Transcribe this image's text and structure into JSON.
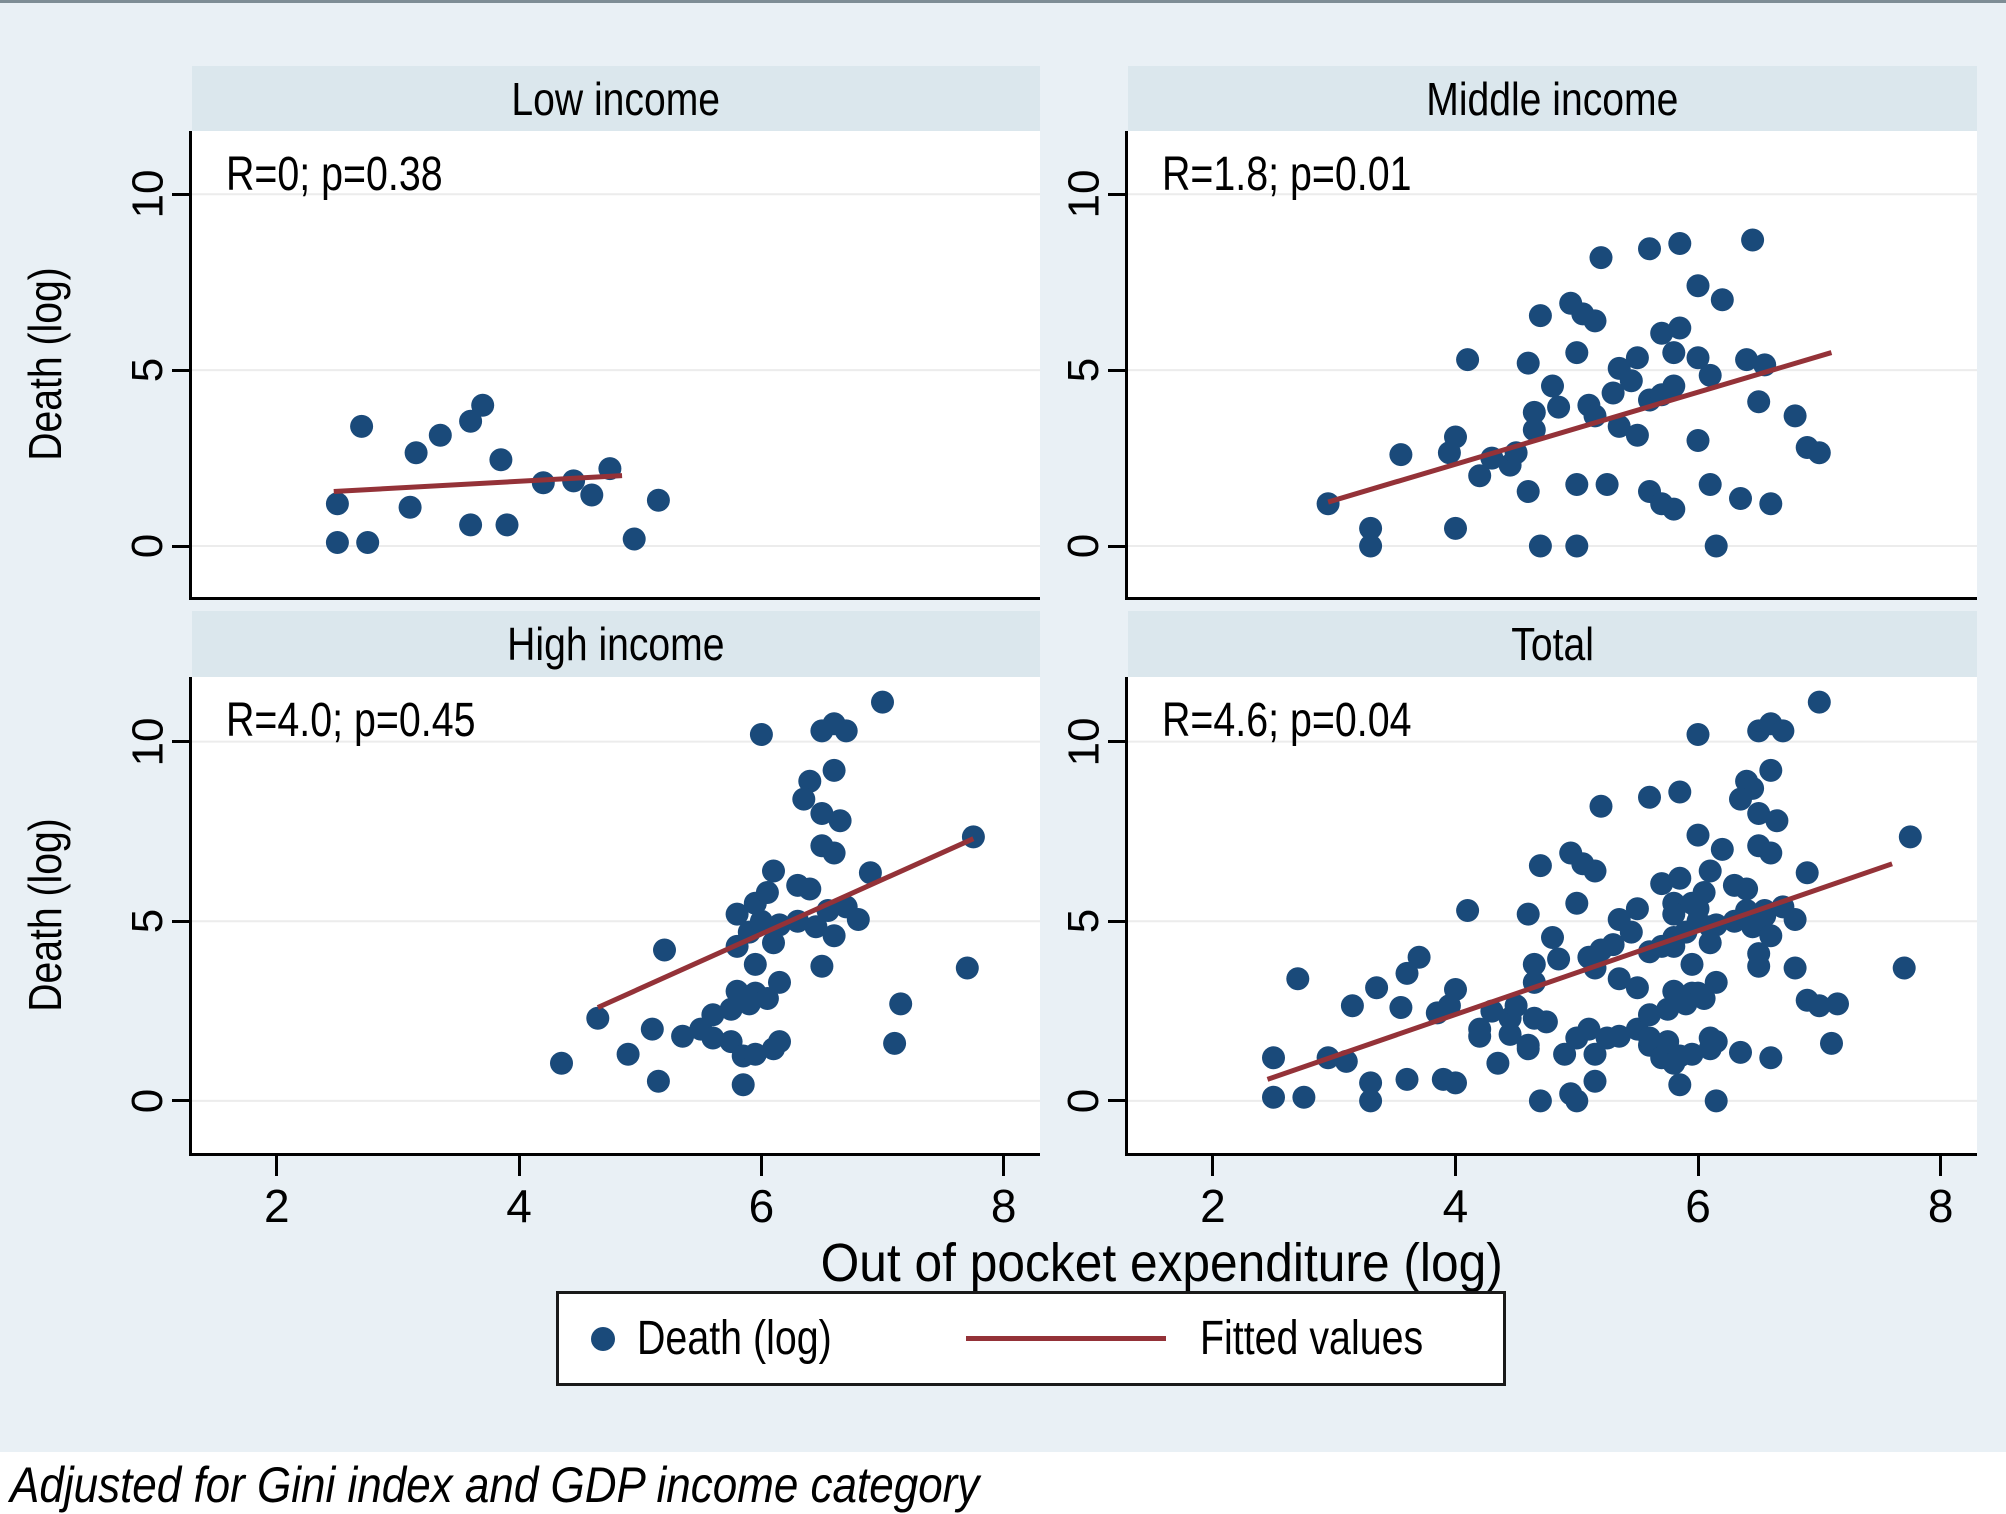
{
  "colors": {
    "point": "#1a4a7a",
    "fitted_line": "#943238",
    "panel_header_bg": "#dbe7ed",
    "figure_bg": "#e9f0f5",
    "gridline": "#ececec"
  },
  "chart_data": {
    "type": "scatter",
    "xlabel": "Out of pocket expenditure (log)",
    "ylabel": "Death (log)",
    "note": "Adjusted for Gini index and GDP income category",
    "xlim": [
      1.3,
      8.3
    ],
    "ylim": [
      -1.45,
      11.8
    ],
    "x_ticks": [
      2,
      4,
      6,
      8
    ],
    "y_ticks": [
      0,
      5,
      10
    ],
    "grid": "horizontal-only",
    "legend": {
      "marker_label": "Death (log)",
      "line_label": "Fitted values",
      "position": "bottom"
    },
    "panels": [
      {
        "key": "low",
        "title": "Low income",
        "annotation": "R=0; p=0.38",
        "fit_line": {
          "x": [
            2.47,
            4.85
          ],
          "y": [
            1.55,
            2.0
          ]
        },
        "points": [
          [
            2.5,
            0.1
          ],
          [
            2.75,
            0.1
          ],
          [
            2.5,
            1.2
          ],
          [
            2.7,
            3.4
          ],
          [
            3.1,
            1.1
          ],
          [
            3.15,
            2.65
          ],
          [
            3.35,
            3.15
          ],
          [
            3.6,
            3.55
          ],
          [
            3.7,
            4.0
          ],
          [
            3.85,
            2.45
          ],
          [
            3.6,
            0.6
          ],
          [
            3.9,
            0.6
          ],
          [
            4.2,
            1.8
          ],
          [
            4.45,
            1.85
          ],
          [
            4.75,
            2.2
          ],
          [
            4.6,
            1.45
          ],
          [
            4.95,
            0.2
          ],
          [
            5.15,
            1.3
          ]
        ]
      },
      {
        "key": "middle",
        "title": "Middle income",
        "annotation": "R=1.8; p=0.01",
        "fit_line": {
          "x": [
            2.95,
            7.1
          ],
          "y": [
            1.25,
            5.5
          ]
        },
        "points": [
          [
            2.95,
            1.2
          ],
          [
            3.3,
            0.5
          ],
          [
            3.3,
            0.0
          ],
          [
            3.55,
            2.6
          ],
          [
            3.95,
            2.65
          ],
          [
            4.0,
            3.1
          ],
          [
            4.0,
            0.5
          ],
          [
            4.1,
            5.3
          ],
          [
            4.2,
            2.0
          ],
          [
            4.3,
            2.5
          ],
          [
            4.45,
            2.3
          ],
          [
            4.5,
            2.65
          ],
          [
            4.6,
            5.2
          ],
          [
            4.6,
            1.55
          ],
          [
            4.65,
            3.8
          ],
          [
            4.65,
            3.3
          ],
          [
            4.7,
            6.55
          ],
          [
            4.7,
            0.0
          ],
          [
            4.8,
            4.55
          ],
          [
            4.85,
            3.95
          ],
          [
            4.95,
            6.9
          ],
          [
            5.0,
            5.5
          ],
          [
            5.0,
            0.0
          ],
          [
            5.05,
            6.6
          ],
          [
            5.0,
            1.75
          ],
          [
            5.1,
            4.0
          ],
          [
            5.15,
            6.4
          ],
          [
            5.15,
            3.7
          ],
          [
            5.2,
            8.2
          ],
          [
            5.25,
            1.75
          ],
          [
            5.35,
            5.05
          ],
          [
            5.35,
            3.4
          ],
          [
            5.45,
            4.7
          ],
          [
            5.3,
            4.35
          ],
          [
            5.5,
            5.35
          ],
          [
            5.5,
            3.15
          ],
          [
            5.6,
            8.45
          ],
          [
            5.6,
            4.15
          ],
          [
            5.6,
            1.55
          ],
          [
            5.7,
            6.05
          ],
          [
            5.7,
            4.3
          ],
          [
            5.7,
            1.2
          ],
          [
            5.8,
            1.05
          ],
          [
            5.85,
            8.6
          ],
          [
            5.85,
            6.2
          ],
          [
            5.8,
            5.5
          ],
          [
            5.8,
            4.55
          ],
          [
            6.0,
            7.4
          ],
          [
            6.0,
            5.35
          ],
          [
            6.0,
            3.0
          ],
          [
            6.1,
            4.85
          ],
          [
            6.1,
            1.75
          ],
          [
            6.2,
            7.0
          ],
          [
            6.15,
            0.0
          ],
          [
            6.35,
            1.35
          ],
          [
            6.4,
            5.3
          ],
          [
            6.45,
            8.7
          ],
          [
            6.5,
            4.1
          ],
          [
            6.55,
            5.15
          ],
          [
            6.6,
            1.2
          ],
          [
            6.8,
            3.7
          ],
          [
            6.9,
            2.8
          ],
          [
            7.0,
            2.65
          ]
        ]
      },
      {
        "key": "high",
        "title": "High income",
        "annotation": "R=4.0; p=0.45",
        "fit_line": {
          "x": [
            4.65,
            7.75
          ],
          "y": [
            2.6,
            7.3
          ]
        },
        "points": [
          [
            4.35,
            1.05
          ],
          [
            4.65,
            2.3
          ],
          [
            4.9,
            1.3
          ],
          [
            5.15,
            0.55
          ],
          [
            5.85,
            0.45
          ],
          [
            5.2,
            4.2
          ],
          [
            5.1,
            2.0
          ],
          [
            5.35,
            1.8
          ],
          [
            5.5,
            2.0
          ],
          [
            5.6,
            1.75
          ],
          [
            5.75,
            1.65
          ],
          [
            5.8,
            5.2
          ],
          [
            5.8,
            4.3
          ],
          [
            5.9,
            4.7
          ],
          [
            5.95,
            5.5
          ],
          [
            5.8,
            3.05
          ],
          [
            5.95,
            3.0
          ],
          [
            6.05,
            2.85
          ],
          [
            5.9,
            2.7
          ],
          [
            5.75,
            2.55
          ],
          [
            5.6,
            2.4
          ],
          [
            5.85,
            1.25
          ],
          [
            5.95,
            1.3
          ],
          [
            6.1,
            1.45
          ],
          [
            6.15,
            1.65
          ],
          [
            6.0,
            10.2
          ],
          [
            6.5,
            10.3
          ],
          [
            6.6,
            10.5
          ],
          [
            6.7,
            10.3
          ],
          [
            7.0,
            11.1
          ],
          [
            6.4,
            8.9
          ],
          [
            6.6,
            9.2
          ],
          [
            6.35,
            8.4
          ],
          [
            6.5,
            8.0
          ],
          [
            6.65,
            7.8
          ],
          [
            6.5,
            7.1
          ],
          [
            6.6,
            6.9
          ],
          [
            6.1,
            6.4
          ],
          [
            6.9,
            6.35
          ],
          [
            6.05,
            5.8
          ],
          [
            6.3,
            6.0
          ],
          [
            6.4,
            5.9
          ],
          [
            6.55,
            5.3
          ],
          [
            6.7,
            5.4
          ],
          [
            6.0,
            5.0
          ],
          [
            6.15,
            4.9
          ],
          [
            6.3,
            5.0
          ],
          [
            6.45,
            4.85
          ],
          [
            6.6,
            4.6
          ],
          [
            6.8,
            5.05
          ],
          [
            6.1,
            4.4
          ],
          [
            5.95,
            3.8
          ],
          [
            6.5,
            3.75
          ],
          [
            6.15,
            3.3
          ],
          [
            7.75,
            7.35
          ],
          [
            7.7,
            3.7
          ],
          [
            7.15,
            2.7
          ],
          [
            7.1,
            1.6
          ]
        ]
      },
      {
        "key": "total",
        "title": "Total",
        "annotation": "R=4.6; p=0.04",
        "fit_line": {
          "x": [
            2.45,
            7.6
          ],
          "y": [
            0.6,
            6.6
          ]
        },
        "points": [
          [
            2.5,
            0.1
          ],
          [
            2.75,
            0.1
          ],
          [
            2.5,
            1.2
          ],
          [
            2.7,
            3.4
          ],
          [
            3.1,
            1.1
          ],
          [
            3.15,
            2.65
          ],
          [
            3.35,
            3.15
          ],
          [
            3.6,
            3.55
          ],
          [
            3.7,
            4.0
          ],
          [
            3.85,
            2.45
          ],
          [
            3.6,
            0.6
          ],
          [
            3.9,
            0.6
          ],
          [
            4.2,
            1.8
          ],
          [
            4.45,
            1.85
          ],
          [
            4.75,
            2.2
          ],
          [
            4.6,
            1.45
          ],
          [
            4.95,
            0.2
          ],
          [
            5.15,
            1.3
          ],
          [
            2.95,
            1.2
          ],
          [
            3.3,
            0.5
          ],
          [
            3.3,
            0.0
          ],
          [
            3.55,
            2.6
          ],
          [
            3.95,
            2.65
          ],
          [
            4.0,
            3.1
          ],
          [
            4.0,
            0.5
          ],
          [
            4.1,
            5.3
          ],
          [
            4.2,
            2.0
          ],
          [
            4.3,
            2.5
          ],
          [
            4.45,
            2.3
          ],
          [
            4.5,
            2.65
          ],
          [
            4.6,
            5.2
          ],
          [
            4.6,
            1.55
          ],
          [
            4.65,
            3.8
          ],
          [
            4.65,
            3.3
          ],
          [
            4.7,
            6.55
          ],
          [
            4.7,
            0.0
          ],
          [
            4.8,
            4.55
          ],
          [
            4.85,
            3.95
          ],
          [
            4.95,
            6.9
          ],
          [
            5.0,
            5.5
          ],
          [
            5.0,
            0.0
          ],
          [
            5.05,
            6.6
          ],
          [
            5.0,
            1.75
          ],
          [
            5.1,
            4.0
          ],
          [
            5.15,
            6.4
          ],
          [
            5.15,
            3.7
          ],
          [
            5.2,
            8.2
          ],
          [
            5.25,
            1.75
          ],
          [
            5.35,
            5.05
          ],
          [
            5.35,
            3.4
          ],
          [
            5.45,
            4.7
          ],
          [
            5.3,
            4.35
          ],
          [
            5.5,
            5.35
          ],
          [
            5.5,
            3.15
          ],
          [
            5.6,
            8.45
          ],
          [
            5.6,
            4.15
          ],
          [
            5.6,
            1.55
          ],
          [
            5.7,
            6.05
          ],
          [
            5.7,
            4.3
          ],
          [
            5.7,
            1.2
          ],
          [
            5.8,
            1.05
          ],
          [
            5.85,
            8.6
          ],
          [
            5.85,
            6.2
          ],
          [
            5.8,
            5.5
          ],
          [
            5.8,
            4.55
          ],
          [
            6.0,
            7.4
          ],
          [
            6.0,
            5.35
          ],
          [
            6.0,
            3.0
          ],
          [
            6.1,
            4.85
          ],
          [
            6.1,
            1.75
          ],
          [
            6.2,
            7.0
          ],
          [
            6.15,
            0.0
          ],
          [
            6.35,
            1.35
          ],
          [
            6.4,
            5.3
          ],
          [
            6.45,
            8.7
          ],
          [
            6.5,
            4.1
          ],
          [
            6.55,
            5.15
          ],
          [
            6.6,
            1.2
          ],
          [
            6.8,
            3.7
          ],
          [
            6.9,
            2.8
          ],
          [
            7.0,
            2.65
          ],
          [
            4.35,
            1.05
          ],
          [
            4.65,
            2.3
          ],
          [
            4.9,
            1.3
          ],
          [
            5.15,
            0.55
          ],
          [
            5.85,
            0.45
          ],
          [
            5.2,
            4.2
          ],
          [
            5.1,
            2.0
          ],
          [
            5.35,
            1.8
          ],
          [
            5.5,
            2.0
          ],
          [
            5.6,
            1.75
          ],
          [
            5.75,
            1.65
          ],
          [
            5.8,
            5.2
          ],
          [
            5.8,
            4.3
          ],
          [
            5.9,
            4.7
          ],
          [
            5.95,
            5.5
          ],
          [
            5.8,
            3.05
          ],
          [
            5.95,
            3.0
          ],
          [
            6.05,
            2.85
          ],
          [
            5.9,
            2.7
          ],
          [
            5.75,
            2.55
          ],
          [
            5.6,
            2.4
          ],
          [
            5.85,
            1.25
          ],
          [
            5.95,
            1.3
          ],
          [
            6.1,
            1.45
          ],
          [
            6.15,
            1.65
          ],
          [
            6.0,
            10.2
          ],
          [
            6.5,
            10.3
          ],
          [
            6.6,
            10.5
          ],
          [
            6.7,
            10.3
          ],
          [
            7.0,
            11.1
          ],
          [
            6.4,
            8.9
          ],
          [
            6.6,
            9.2
          ],
          [
            6.35,
            8.4
          ],
          [
            6.5,
            8.0
          ],
          [
            6.65,
            7.8
          ],
          [
            6.5,
            7.1
          ],
          [
            6.6,
            6.9
          ],
          [
            6.1,
            6.4
          ],
          [
            6.9,
            6.35
          ],
          [
            6.05,
            5.8
          ],
          [
            6.3,
            6.0
          ],
          [
            6.4,
            5.9
          ],
          [
            6.55,
            5.3
          ],
          [
            6.7,
            5.4
          ],
          [
            6.0,
            5.0
          ],
          [
            6.15,
            4.9
          ],
          [
            6.3,
            5.0
          ],
          [
            6.45,
            4.85
          ],
          [
            6.6,
            4.6
          ],
          [
            6.8,
            5.05
          ],
          [
            6.1,
            4.4
          ],
          [
            5.95,
            3.8
          ],
          [
            6.5,
            3.75
          ],
          [
            6.15,
            3.3
          ],
          [
            7.75,
            7.35
          ],
          [
            7.7,
            3.7
          ],
          [
            7.15,
            2.7
          ],
          [
            7.1,
            1.6
          ]
        ]
      }
    ]
  }
}
